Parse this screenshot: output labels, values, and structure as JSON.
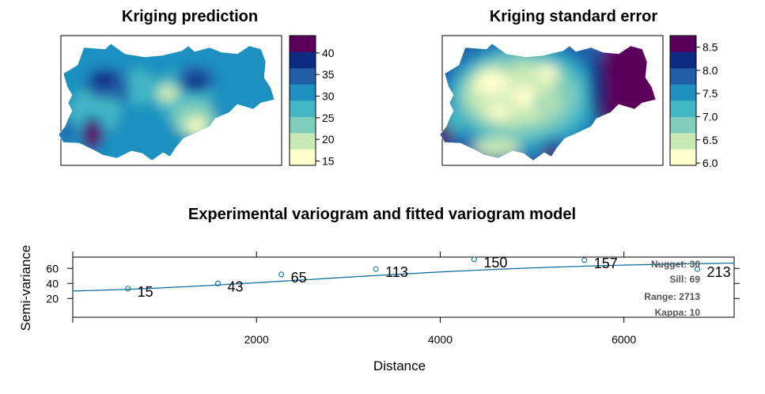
{
  "chart_data": [
    {
      "type": "heatmap",
      "title": "Kriging prediction",
      "legend_ticks": [
        "15",
        "20",
        "25",
        "30",
        "35",
        "40"
      ],
      "legend_range": [
        14,
        44
      ],
      "palette": [
        "#ffffcc",
        "#c7e9b4",
        "#7fcdbb",
        "#41b6c4",
        "#1d91c0",
        "#225ea8",
        "#0c2c84",
        "#5a005a"
      ]
    },
    {
      "type": "heatmap",
      "title": "Kriging standard error",
      "legend_ticks": [
        "6.0",
        "6.5",
        "7.0",
        "7.5",
        "8.0",
        "8.5"
      ],
      "legend_range": [
        5.95,
        8.75
      ],
      "palette": [
        "#ffffcc",
        "#c7e9b4",
        "#7fcdbb",
        "#41b6c4",
        "#1d91c0",
        "#225ea8",
        "#0c2c84",
        "#5a005a"
      ]
    },
    {
      "type": "scatter",
      "title": "Experimental variogram and fitted variogram model",
      "xlabel": "Distance",
      "ylabel": "Semi-variance",
      "x_ticks": [
        "2000",
        "4000",
        "6000"
      ],
      "y_ticks": [
        "20",
        "40",
        "60"
      ],
      "xlim": [
        0,
        7200
      ],
      "ylim": [
        -5,
        75
      ],
      "points": [
        {
          "x": 600,
          "y": 33,
          "n": "15"
        },
        {
          "x": 1580,
          "y": 40,
          "n": "43"
        },
        {
          "x": 2270,
          "y": 52,
          "n": "65"
        },
        {
          "x": 3300,
          "y": 59,
          "n": "113"
        },
        {
          "x": 4370,
          "y": 72,
          "n": "150"
        },
        {
          "x": 5570,
          "y": 71,
          "n": "157"
        },
        {
          "x": 6800,
          "y": 59,
          "n": "213"
        }
      ],
      "model": {
        "nugget_label": "Nugget: 30",
        "sill_label": "Sill: 69",
        "range_label": "Range: 2713",
        "kappa_label": "Kappa: 10",
        "nugget": 30,
        "sill": 69,
        "range": 2713
      },
      "colors": {
        "points": "#006699",
        "line": "#006699"
      }
    }
  ]
}
